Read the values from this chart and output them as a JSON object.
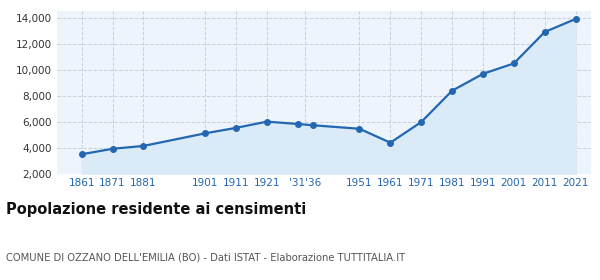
{
  "years": [
    1861,
    1871,
    1881,
    1901,
    1911,
    1921,
    1931,
    1936,
    1951,
    1961,
    1971,
    1981,
    1991,
    2001,
    2011,
    2021
  ],
  "population": [
    3490,
    3910,
    4130,
    5100,
    5520,
    6000,
    5820,
    5720,
    5450,
    4380,
    5970,
    8380,
    9680,
    10480,
    12900,
    13900
  ],
  "x_tick_labels": [
    "1861",
    "1871",
    "1881",
    "1901",
    "1911",
    "1921",
    "'31'36",
    "1951",
    "1961",
    "1971",
    "1981",
    "1991",
    "2001",
    "2011",
    "2021"
  ],
  "x_tick_positions": [
    1861,
    1871,
    1881,
    1901,
    1911,
    1921,
    1933.5,
    1951,
    1961,
    1971,
    1981,
    1991,
    2001,
    2011,
    2021
  ],
  "ylim": [
    2000,
    14500
  ],
  "yticks": [
    2000,
    4000,
    6000,
    8000,
    10000,
    12000,
    14000
  ],
  "xlim": [
    1853,
    2026
  ],
  "title": "Popolazione residente ai censimenti",
  "subtitle": "COMUNE DI OZZANO DELL'EMILIA (BO) - Dati ISTAT - Elaborazione TUTTITALIA.IT",
  "line_color": "#2267b0",
  "fill_color": "#daeaf7",
  "marker_color": "#2267b0",
  "grid_color": "#c8d0dc",
  "background_color": "#eef4fb",
  "title_fontsize": 10.5,
  "subtitle_fontsize": 7.2,
  "tick_fontsize": 7.5,
  "ytick_color": "#333333"
}
